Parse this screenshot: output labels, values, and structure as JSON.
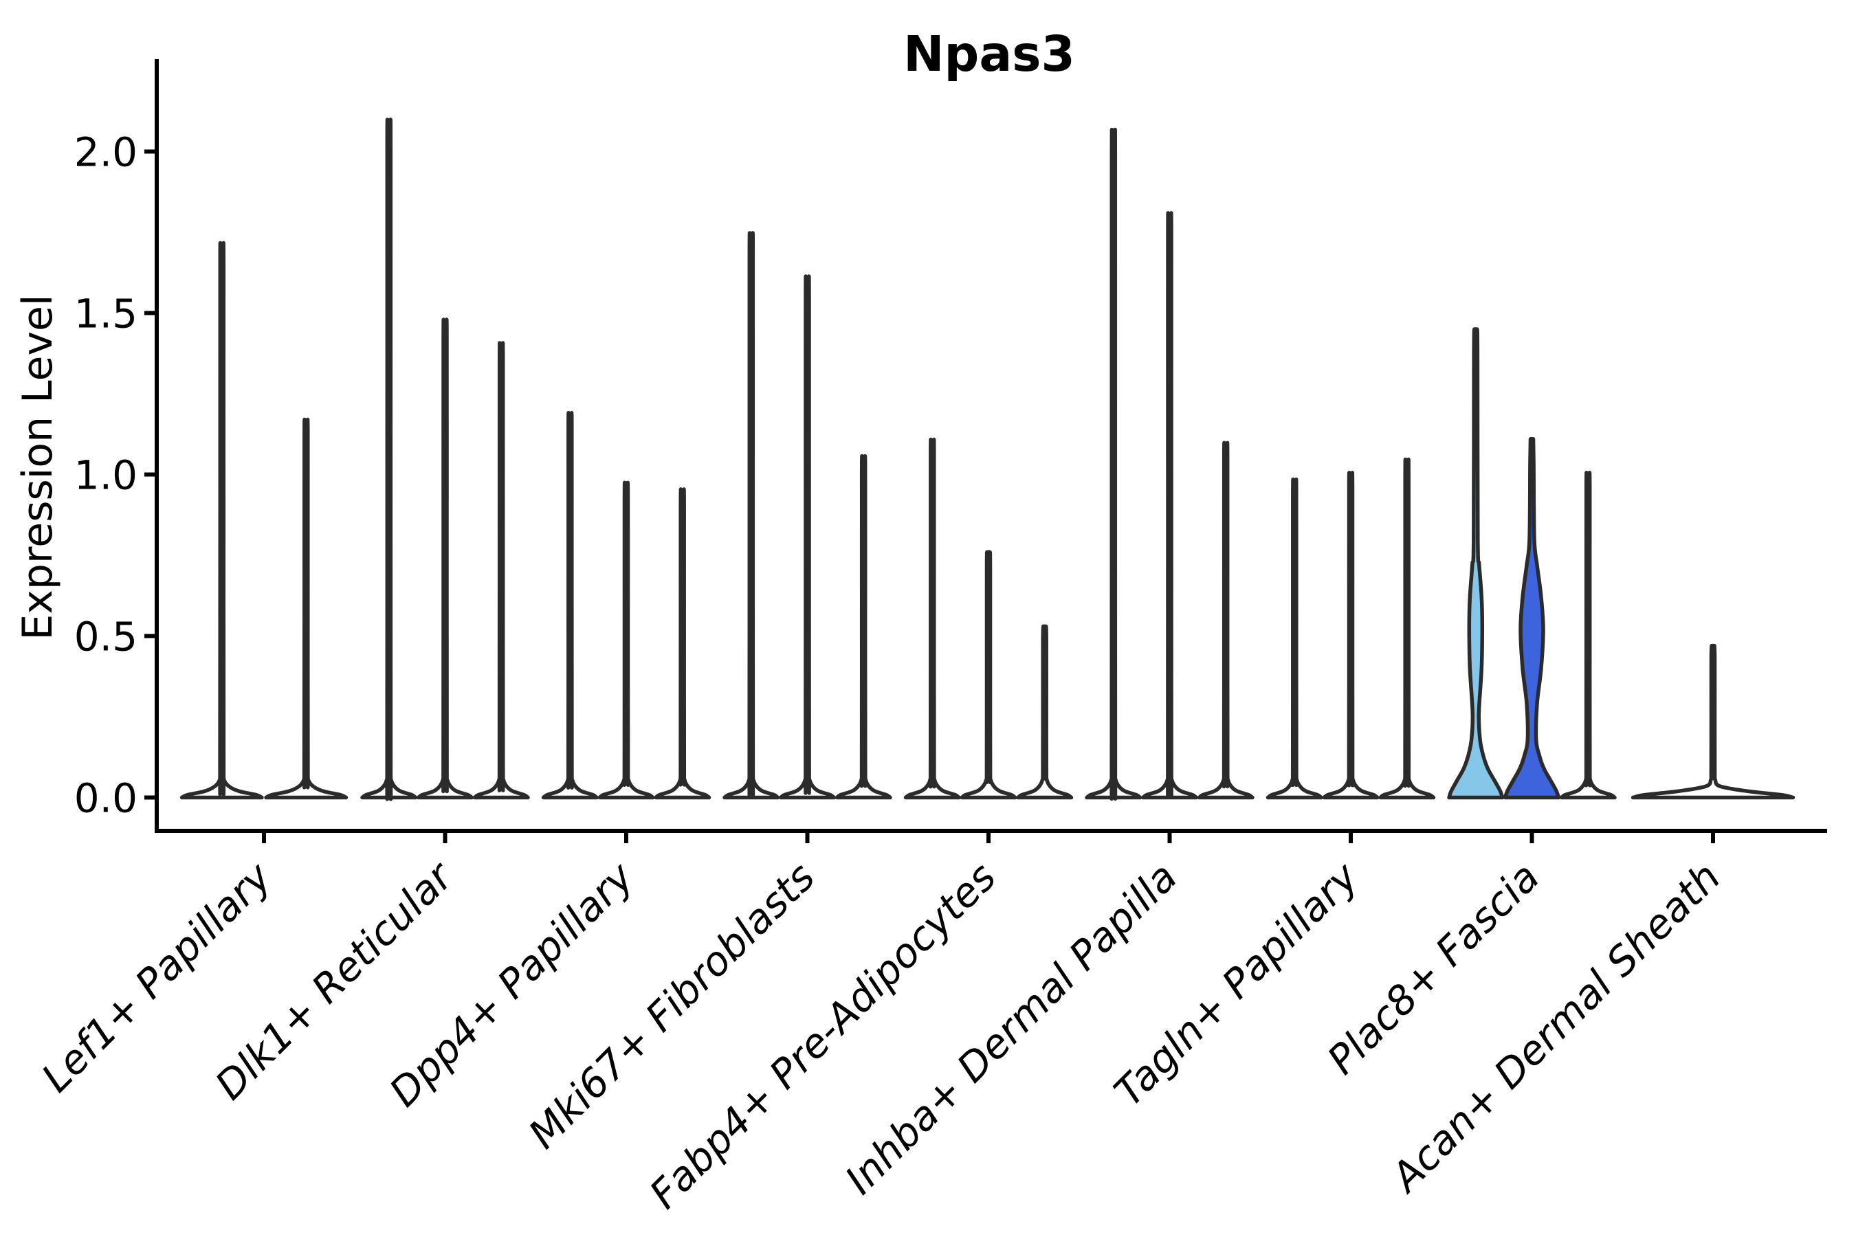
{
  "chart_data": {
    "type": "violin",
    "title": "Npas3",
    "ylabel": "Expression Level",
    "xlabel": "",
    "grid": false,
    "legend": "none",
    "ylim": [
      -0.09,
      2.29
    ],
    "yticks": [
      {
        "label": "0.0",
        "value": 0.0
      },
      {
        "label": "0.5",
        "value": 0.5
      },
      {
        "label": "1.0",
        "value": 1.0
      },
      {
        "label": "1.5",
        "value": 1.5
      },
      {
        "label": "2.0",
        "value": 2.0
      }
    ],
    "categories": [
      "Lef1+ Papillary",
      "Dlk1+ Reticular",
      "Dpp4+ Papillary",
      "Mki67+ Fibroblasts",
      "Fabp4+ Pre-Adipocytes",
      "Inhba+ Dermal Papilla",
      "Tagln+ Papillary",
      "Plac8+ Fascia",
      "Acan+ Dermal Sheath"
    ],
    "xtick_label_rotation_deg": 45,
    "xtick_label_style": "italic",
    "colors": {
      "outline": "#2b2b2b",
      "axis": "#000000",
      "default_fill": "#ffffff",
      "highlight_fill_1": "#85C6E9",
      "highlight_fill_2": "#3D64DD"
    },
    "groups": [
      {
        "category": "Lef1+ Papillary",
        "violins": [
          {
            "peak": 1.69
          },
          {
            "peak": 1.16
          }
        ]
      },
      {
        "category": "Dlk1+ Reticular",
        "violins": [
          {
            "peak": 2.06
          },
          {
            "peak": 1.46
          },
          {
            "peak": 1.39
          }
        ]
      },
      {
        "category": "Dpp4+ Papillary",
        "violins": [
          {
            "peak": 1.18
          },
          {
            "peak": 0.97
          },
          {
            "peak": 0.95
          }
        ]
      },
      {
        "category": "Mki67+ Fibroblasts",
        "violins": [
          {
            "peak": 1.72
          },
          {
            "peak": 1.59
          },
          {
            "peak": 1.05
          }
        ]
      },
      {
        "category": "Fabp4+ Pre-Adipocytes",
        "violins": [
          {
            "peak": 1.1
          },
          {
            "peak": 0.76
          },
          {
            "peak": 0.53
          }
        ]
      },
      {
        "category": "Inhba+ Dermal Papilla",
        "violins": [
          {
            "peak": 2.03
          },
          {
            "peak": 1.78
          },
          {
            "peak": 1.09
          }
        ]
      },
      {
        "category": "Tagln+ Papillary",
        "violins": [
          {
            "peak": 0.98
          },
          {
            "peak": 1.0
          },
          {
            "peak": 1.04
          }
        ]
      },
      {
        "category": "Plac8+ Fascia",
        "violins": [
          {
            "peak": 1.45,
            "fill": "#85C6E9",
            "body": [
              [
                0.26,
                4.5
              ],
              [
                0.4,
                8.5
              ],
              [
                0.53,
                9.5
              ],
              [
                0.62,
                8.5
              ],
              [
                0.72,
                5.0
              ],
              [
                0.8,
                3.0
              ]
            ]
          },
          {
            "peak": 1.11,
            "fill": "#3D64DD",
            "body": [
              [
                0.29,
                7.5
              ],
              [
                0.4,
                13.5
              ],
              [
                0.52,
                16.5
              ],
              [
                0.62,
                13.5
              ],
              [
                0.72,
                7.5
              ],
              [
                0.8,
                3.5
              ]
            ]
          },
          {
            "peak": 1.0
          }
        ]
      },
      {
        "category": "Acan+ Dermal Sheath",
        "violins": [
          {
            "peak": 0.47
          }
        ]
      }
    ]
  }
}
